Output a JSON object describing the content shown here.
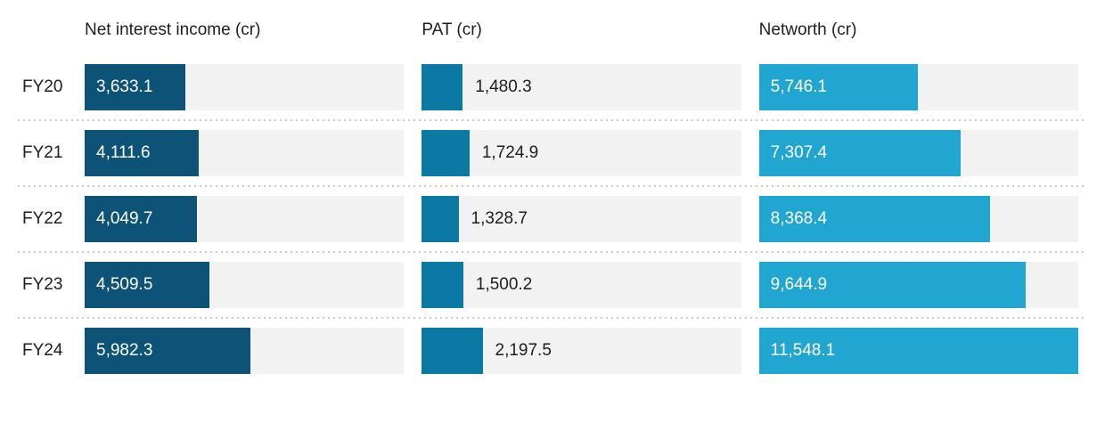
{
  "chart_data": {
    "type": "bar",
    "orientation": "horizontal",
    "title": "",
    "categories": [
      "FY20",
      "FY21",
      "FY22",
      "FY23",
      "FY24"
    ],
    "scale_max": 11548.1,
    "track_color": "#f2f2f2",
    "separator_color": "#c9c9c9",
    "series": [
      {
        "name": "Net interest income (cr)",
        "color": "#0c5377",
        "label_position": "inside",
        "values": [
          3633.1,
          4111.6,
          4049.7,
          4509.5,
          5982.3
        ],
        "labels": [
          "3,633.1",
          "4,111.6",
          "4,049.7",
          "4,509.5",
          "5,982.3"
        ]
      },
      {
        "name": "PAT (cr)",
        "color": "#0a7aa5",
        "label_position": "outside",
        "values": [
          1480.3,
          1724.9,
          1328.7,
          1500.2,
          2197.5
        ],
        "labels": [
          "1,480.3",
          "1,724.9",
          "1,328.7",
          "1,500.2",
          "2,197.5"
        ]
      },
      {
        "name": "Networth (cr)",
        "color": "#21a5d1",
        "label_position": "inside",
        "values": [
          5746.1,
          7307.4,
          8368.4,
          9644.9,
          11548.1
        ],
        "labels": [
          "5,746.1",
          "7,307.4",
          "8,368.4",
          "9,644.9",
          "11,548.1"
        ]
      }
    ]
  }
}
